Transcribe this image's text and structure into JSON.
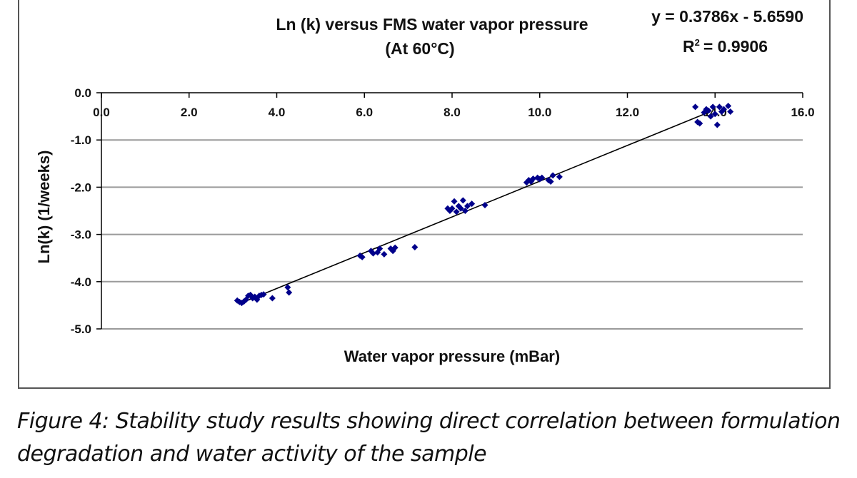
{
  "chart_data": {
    "type": "scatter",
    "title": "Ln (k) versus FMS water vapor pressure",
    "subtitle": "(At 60°C)",
    "xlabel": "Water vapor pressure (mBar)",
    "ylabel": "Ln(k) (1/weeks)",
    "xlim": [
      0,
      16
    ],
    "ylim": [
      -5,
      0
    ],
    "x_ticks": [
      "0.0",
      "2.0",
      "4.0",
      "6.0",
      "8.0",
      "10.0",
      "12.0",
      "14.0",
      "16.0"
    ],
    "y_ticks": [
      "0.0",
      "-1.0",
      "-2.0",
      "-3.0",
      "-4.0",
      "-5.0"
    ],
    "x_axis_position": "top (at y = 0)",
    "grid": "horizontal",
    "point_color": "#00008B",
    "equation": "y = 0.3786x - 5.6590",
    "r_squared": "= 0.9906",
    "r_squared_prefix": "R",
    "r_squared_sup": "2",
    "trendline": {
      "slope": 0.3786,
      "intercept": -5.659,
      "x_range": [
        3.15,
        13.85
      ]
    },
    "points": [
      [
        3.1,
        -4.4
      ],
      [
        3.15,
        -4.43
      ],
      [
        3.2,
        -4.45
      ],
      [
        3.25,
        -4.42
      ],
      [
        3.3,
        -4.38
      ],
      [
        3.35,
        -4.3
      ],
      [
        3.4,
        -4.28
      ],
      [
        3.45,
        -4.35
      ],
      [
        3.5,
        -4.32
      ],
      [
        3.55,
        -4.38
      ],
      [
        3.6,
        -4.3
      ],
      [
        3.65,
        -4.28
      ],
      [
        3.7,
        -4.27
      ],
      [
        3.9,
        -4.35
      ],
      [
        4.25,
        -4.12
      ],
      [
        4.28,
        -4.23
      ],
      [
        5.9,
        -3.45
      ],
      [
        5.95,
        -3.48
      ],
      [
        6.15,
        -3.35
      ],
      [
        6.2,
        -3.4
      ],
      [
        6.3,
        -3.38
      ],
      [
        6.35,
        -3.3
      ],
      [
        6.45,
        -3.42
      ],
      [
        6.6,
        -3.3
      ],
      [
        6.65,
        -3.35
      ],
      [
        6.7,
        -3.28
      ],
      [
        7.15,
        -3.27
      ],
      [
        7.9,
        -2.45
      ],
      [
        7.95,
        -2.5
      ],
      [
        8.0,
        -2.45
      ],
      [
        8.05,
        -2.3
      ],
      [
        8.1,
        -2.52
      ],
      [
        8.15,
        -2.4
      ],
      [
        8.2,
        -2.45
      ],
      [
        8.25,
        -2.28
      ],
      [
        8.3,
        -2.5
      ],
      [
        8.35,
        -2.4
      ],
      [
        8.45,
        -2.35
      ],
      [
        8.75,
        -2.38
      ],
      [
        9.7,
        -1.9
      ],
      [
        9.75,
        -1.85
      ],
      [
        9.8,
        -1.88
      ],
      [
        9.85,
        -1.82
      ],
      [
        9.95,
        -1.8
      ],
      [
        10.0,
        -1.83
      ],
      [
        10.05,
        -1.8
      ],
      [
        10.2,
        -1.85
      ],
      [
        10.25,
        -1.88
      ],
      [
        10.3,
        -1.75
      ],
      [
        10.45,
        -1.78
      ],
      [
        13.55,
        -0.3
      ],
      [
        13.6,
        -0.62
      ],
      [
        13.65,
        -0.65
      ],
      [
        13.75,
        -0.42
      ],
      [
        13.8,
        -0.35
      ],
      [
        13.85,
        -0.38
      ],
      [
        13.9,
        -0.5
      ],
      [
        13.95,
        -0.3
      ],
      [
        14.0,
        -0.45
      ],
      [
        14.05,
        -0.68
      ],
      [
        14.1,
        -0.3
      ],
      [
        14.15,
        -0.4
      ],
      [
        14.2,
        -0.35
      ],
      [
        14.3,
        -0.28
      ],
      [
        14.35,
        -0.4
      ]
    ]
  },
  "caption": {
    "line1": "Figure 4: Stability study results showing direct correlation between formulation",
    "line2": "degradation and water activity of the sample"
  }
}
